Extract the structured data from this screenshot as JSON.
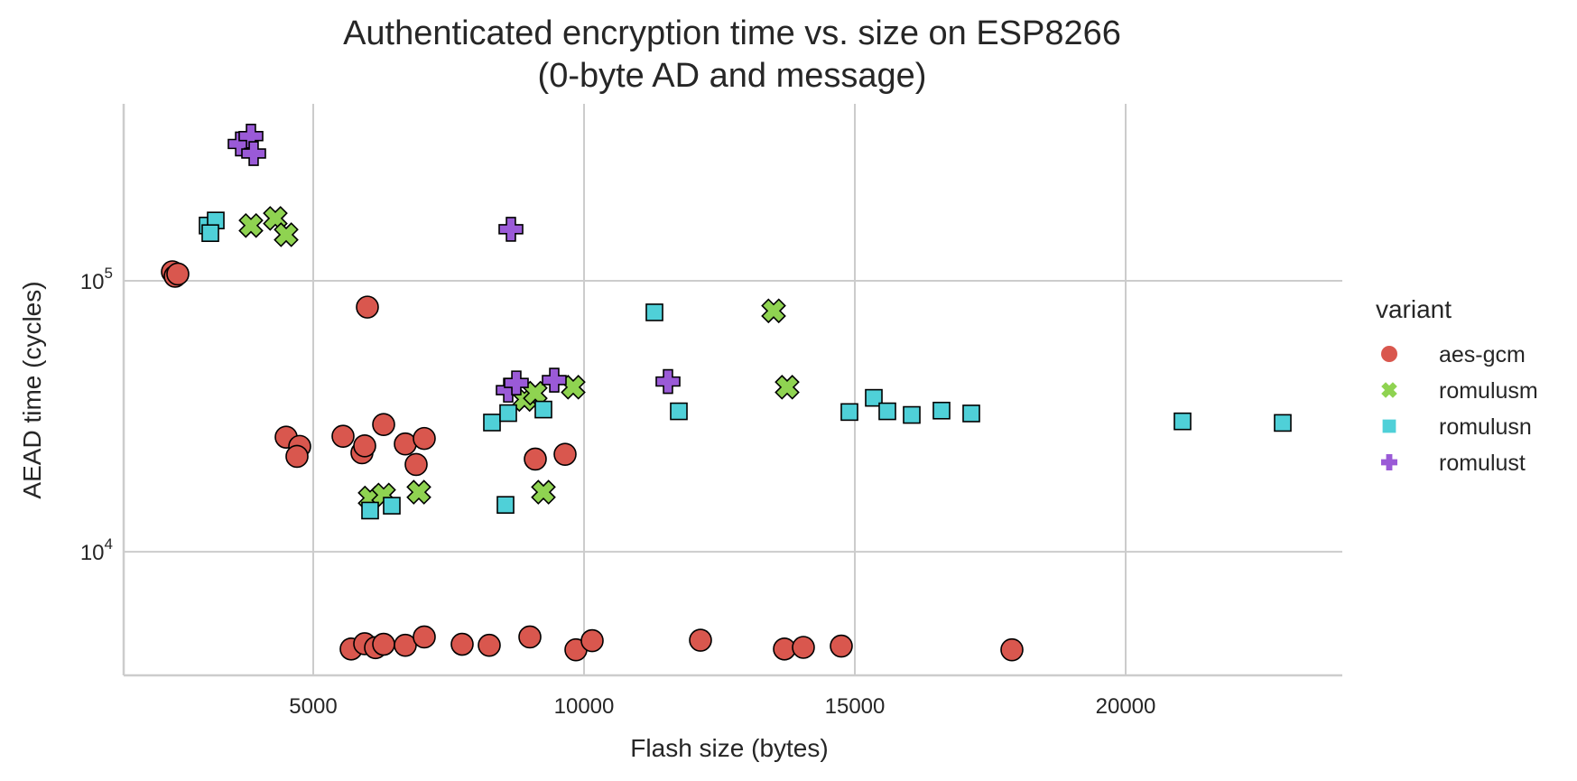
{
  "chart_data": {
    "type": "scatter",
    "title": "Authenticated encryption time vs. size on ESP8266",
    "subtitle": "(0-byte AD and message)",
    "xlabel": "Flash size (bytes)",
    "ylabel": "AEAD time (cycles)",
    "x_scale": "linear",
    "y_scale": "log",
    "xlim": [
      1500,
      24000
    ],
    "ylim": [
      3500,
      450000
    ],
    "x_ticks": [
      5000,
      10000,
      15000,
      20000
    ],
    "x_tick_labels": [
      "5000",
      "10000",
      "15000",
      "20000"
    ],
    "y_ticks": [
      10000,
      100000
    ],
    "y_tick_labels": [
      {
        "base": "10",
        "exp": "4"
      },
      {
        "base": "10",
        "exp": "5"
      }
    ],
    "grid": true,
    "legend": {
      "title": "variant",
      "placement": "right"
    },
    "series": [
      {
        "name": "aes-gcm",
        "marker": "circle",
        "color": "#d9574e",
        "points": [
          [
            2400,
            108000
          ],
          [
            2450,
            104000
          ],
          [
            2500,
            106000
          ],
          [
            6000,
            80000
          ],
          [
            4500,
            26500
          ],
          [
            4750,
            24500
          ],
          [
            4700,
            22500
          ],
          [
            5550,
            26700
          ],
          [
            5900,
            23200
          ],
          [
            5950,
            24600
          ],
          [
            6300,
            29500
          ],
          [
            6700,
            25000
          ],
          [
            7050,
            26200
          ],
          [
            6900,
            21000
          ],
          [
            9100,
            22000
          ],
          [
            9650,
            22900
          ],
          [
            5700,
            4380
          ],
          [
            5950,
            4580
          ],
          [
            6150,
            4430
          ],
          [
            6300,
            4560
          ],
          [
            6700,
            4520
          ],
          [
            7050,
            4850
          ],
          [
            7750,
            4560
          ],
          [
            8250,
            4520
          ],
          [
            9000,
            4850
          ],
          [
            9850,
            4350
          ],
          [
            10150,
            4700
          ],
          [
            12150,
            4720
          ],
          [
            13700,
            4380
          ],
          [
            14050,
            4440
          ],
          [
            14750,
            4490
          ],
          [
            17900,
            4350
          ]
        ]
      },
      {
        "name": "romulusm",
        "marker": "x",
        "color": "#8fd351",
        "points": [
          [
            3850,
            160000
          ],
          [
            4300,
            170000
          ],
          [
            4500,
            148000
          ],
          [
            13500,
            77500
          ],
          [
            13750,
            40500
          ],
          [
            8900,
            36500
          ],
          [
            9100,
            38500
          ],
          [
            9800,
            40500
          ],
          [
            6050,
            15800
          ],
          [
            6300,
            16200
          ],
          [
            6950,
            16600
          ],
          [
            9250,
            16600
          ]
        ]
      },
      {
        "name": "romulusn",
        "marker": "square",
        "color": "#4fd0d8",
        "points": [
          [
            3050,
            160000
          ],
          [
            3200,
            167000
          ],
          [
            3100,
            150000
          ],
          [
            11300,
            76500
          ],
          [
            8300,
            30000
          ],
          [
            8600,
            32500
          ],
          [
            9250,
            33500
          ],
          [
            11750,
            33000
          ],
          [
            14900,
            32800
          ],
          [
            15350,
            37000
          ],
          [
            15600,
            33000
          ],
          [
            16050,
            32000
          ],
          [
            16600,
            33200
          ],
          [
            17150,
            32400
          ],
          [
            21050,
            30300
          ],
          [
            22900,
            29900
          ],
          [
            6050,
            14200
          ],
          [
            6450,
            14800
          ],
          [
            8550,
            14900
          ]
        ]
      },
      {
        "name": "romulust",
        "marker": "plus",
        "color": "#9a5ad7",
        "points": [
          [
            3650,
            320000
          ],
          [
            3850,
            342000
          ],
          [
            3900,
            295000
          ],
          [
            8650,
            155000
          ],
          [
            8600,
            39500
          ],
          [
            8750,
            42000
          ],
          [
            9450,
            43000
          ],
          [
            11550,
            42500
          ]
        ]
      }
    ]
  }
}
